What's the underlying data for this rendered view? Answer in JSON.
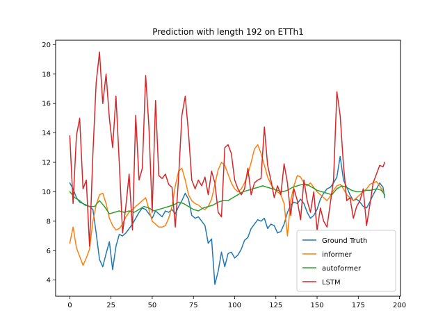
{
  "chart_data": {
    "type": "line",
    "title": "Prediction with length 192 on ETTh1",
    "xlabel": "",
    "ylabel": "",
    "xlim": [
      -8.6,
      200.6
    ],
    "ylim": [
      2.9,
      20.3
    ],
    "xticks": [
      0,
      25,
      50,
      75,
      100,
      125,
      150,
      175,
      200
    ],
    "yticks": [
      4,
      6,
      8,
      10,
      12,
      14,
      16,
      18,
      20
    ],
    "grid": false,
    "legend_position": "lower-right",
    "series": [
      {
        "name": "Ground Truth",
        "color": "#1f77b4",
        "x": [
          0,
          2,
          4,
          6,
          8,
          10,
          12,
          14,
          16,
          18,
          20,
          22,
          24,
          26,
          28,
          30,
          32,
          34,
          36,
          38,
          40,
          42,
          44,
          46,
          48,
          50,
          52,
          54,
          56,
          58,
          60,
          62,
          64,
          66,
          68,
          70,
          72,
          74,
          76,
          78,
          80,
          82,
          84,
          86,
          88,
          90,
          92,
          94,
          96,
          98,
          100,
          102,
          104,
          106,
          108,
          110,
          112,
          114,
          116,
          118,
          120,
          122,
          124,
          126,
          128,
          130,
          132,
          134,
          136,
          138,
          140,
          142,
          144,
          146,
          148,
          150,
          152,
          154,
          156,
          158,
          160,
          162,
          164,
          166,
          168,
          170,
          172,
          174,
          176,
          178,
          180,
          182,
          184,
          186,
          188,
          190,
          191
        ],
        "y": [
          10.6,
          10.2,
          9.6,
          9.3,
          9.2,
          9.1,
          9.0,
          8.8,
          7.2,
          5.4,
          4.9,
          5.8,
          6.6,
          4.7,
          6.3,
          7.1,
          7.0,
          7.2,
          7.5,
          7.8,
          8.2,
          8.6,
          8.9,
          8.8,
          8.5,
          8.2,
          8.7,
          8.5,
          8.3,
          8.7,
          8.6,
          8.8,
          8.5,
          9.0,
          9.4,
          9.9,
          9.5,
          8.4,
          8.2,
          8.3,
          8.0,
          7.7,
          6.5,
          6.8,
          3.7,
          4.6,
          5.9,
          4.9,
          5.8,
          5.9,
          5.5,
          5.7,
          6.1,
          6.7,
          6.9,
          7.5,
          7.8,
          8.1,
          8.0,
          8.2,
          7.5,
          7.8,
          7.7,
          7.2,
          7.3,
          7.8,
          8.6,
          9.1,
          9.3,
          9.2,
          9.5,
          9.2,
          8.6,
          8.2,
          8.4,
          8.8,
          9.5,
          9.9,
          10.2,
          10.3,
          10.6,
          11.0,
          12.4,
          10.8,
          10.3,
          9.8,
          9.4,
          9.5,
          9.3,
          9.0,
          8.9,
          9.3,
          9.8,
          10.2,
          10.6,
          10.3,
          9.6
        ]
      },
      {
        "name": "informer",
        "color": "#ff7f0e",
        "x": [
          0,
          2,
          4,
          6,
          8,
          10,
          12,
          14,
          16,
          18,
          20,
          22,
          24,
          26,
          28,
          30,
          32,
          34,
          36,
          38,
          40,
          42,
          44,
          46,
          48,
          50,
          52,
          54,
          56,
          58,
          60,
          62,
          64,
          66,
          68,
          70,
          72,
          74,
          76,
          78,
          80,
          82,
          84,
          86,
          88,
          90,
          92,
          94,
          96,
          98,
          100,
          102,
          104,
          106,
          108,
          110,
          112,
          114,
          116,
          118,
          120,
          122,
          124,
          126,
          128,
          130,
          132,
          134,
          136,
          138,
          140,
          142,
          144,
          146,
          148,
          150,
          152,
          154,
          156,
          158,
          160,
          162,
          164,
          166,
          168,
          170,
          172,
          174,
          176,
          178,
          180,
          182,
          184,
          186,
          188,
          190,
          191
        ],
        "y": [
          6.5,
          7.6,
          6.2,
          5.6,
          5.0,
          5.5,
          6.1,
          8.0,
          9.1,
          9.8,
          9.9,
          9.2,
          8.2,
          7.7,
          7.4,
          7.5,
          7.8,
          8.3,
          8.6,
          8.8,
          9.0,
          9.2,
          9.4,
          9.6,
          8.8,
          8.0,
          7.8,
          7.6,
          7.6,
          7.7,
          8.2,
          9.0,
          10.4,
          11.4,
          11.6,
          10.8,
          9.8,
          9.4,
          9.2,
          9.1,
          8.9,
          8.8,
          9.0,
          9.5,
          10.5,
          11.5,
          12.0,
          11.8,
          11.2,
          10.6,
          10.2,
          10.0,
          10.2,
          10.6,
          11.2,
          12.0,
          12.9,
          13.2,
          12.6,
          11.8,
          11.0,
          10.5,
          10.2,
          10.0,
          9.8,
          9.2,
          7.0,
          9.4,
          10.4,
          11.1,
          11.0,
          10.6,
          10.4,
          10.6,
          10.3,
          10.0,
          9.8,
          9.6,
          9.4,
          9.7,
          10.1,
          10.4,
          10.5,
          10.2,
          9.8,
          9.6,
          9.4,
          9.6,
          9.8,
          10.0,
          10.2,
          10.5,
          10.6,
          10.7,
          10.4,
          10.0,
          9.8
        ]
      },
      {
        "name": "autoformer",
        "color": "#2ca02c",
        "x": [
          0,
          3,
          6,
          9,
          12,
          15,
          18,
          21,
          24,
          27,
          30,
          33,
          36,
          39,
          42,
          45,
          48,
          51,
          54,
          57,
          60,
          63,
          66,
          69,
          72,
          75,
          78,
          81,
          84,
          87,
          90,
          93,
          96,
          99,
          102,
          105,
          108,
          111,
          114,
          117,
          120,
          123,
          126,
          129,
          132,
          135,
          138,
          141,
          144,
          147,
          150,
          153,
          156,
          159,
          162,
          165,
          168,
          171,
          174,
          177,
          180,
          183,
          186,
          189,
          191
        ],
        "y": [
          10.0,
          9.6,
          9.4,
          9.1,
          9.0,
          9.0,
          9.4,
          9.0,
          8.5,
          8.6,
          8.7,
          8.6,
          8.7,
          8.6,
          8.8,
          9.0,
          8.9,
          8.7,
          8.8,
          8.9,
          9.0,
          9.1,
          9.3,
          9.2,
          9.0,
          8.8,
          8.7,
          8.9,
          9.0,
          9.1,
          9.3,
          9.4,
          9.4,
          9.6,
          9.8,
          10.0,
          10.1,
          10.2,
          10.3,
          10.4,
          10.3,
          10.2,
          10.1,
          10.0,
          10.1,
          10.3,
          10.4,
          10.5,
          10.5,
          10.3,
          10.1,
          10.0,
          9.9,
          9.8,
          10.2,
          10.4,
          10.3,
          10.1,
          10.0,
          10.0,
          10.1,
          10.1,
          10.2,
          10.1,
          9.8
        ]
      },
      {
        "name": "LSTM",
        "color": "#d62728",
        "x": [
          0,
          2,
          4,
          6,
          8,
          10,
          12,
          14,
          16,
          18,
          20,
          22,
          24,
          26,
          28,
          30,
          32,
          34,
          36,
          38,
          40,
          42,
          44,
          46,
          48,
          50,
          52,
          54,
          56,
          58,
          60,
          62,
          64,
          66,
          68,
          70,
          72,
          74,
          76,
          78,
          80,
          82,
          84,
          86,
          88,
          90,
          92,
          94,
          96,
          98,
          100,
          102,
          104,
          106,
          108,
          110,
          112,
          114,
          116,
          118,
          120,
          122,
          124,
          126,
          128,
          130,
          132,
          134,
          136,
          138,
          140,
          142,
          144,
          146,
          148,
          150,
          152,
          154,
          156,
          158,
          160,
          162,
          164,
          166,
          168,
          170,
          172,
          174,
          176,
          178,
          180,
          182,
          184,
          186,
          188,
          190,
          191
        ],
        "y": [
          13.8,
          9.2,
          13.8,
          15.0,
          10.2,
          10.8,
          6.3,
          12.6,
          17.4,
          19.5,
          16.0,
          18.0,
          15.0,
          13.0,
          16.5,
          12.0,
          7.2,
          9.0,
          11.2,
          7.4,
          15.2,
          10.8,
          11.6,
          17.9,
          14.4,
          8.6,
          16.2,
          11.1,
          10.9,
          11.2,
          10.5,
          10.3,
          7.6,
          11.0,
          15.2,
          16.5,
          14.0,
          10.8,
          10.2,
          10.8,
          10.4,
          11.0,
          9.8,
          11.4,
          10.6,
          8.6,
          8.3,
          13.0,
          13.2,
          12.6,
          10.8,
          10.2,
          9.8,
          10.2,
          11.6,
          9.8,
          10.6,
          10.8,
          10.9,
          14.4,
          11.8,
          10.8,
          9.6,
          10.4,
          9.8,
          11.9,
          10.6,
          8.4,
          10.2,
          9.4,
          8.1,
          10.8,
          9.4,
          8.6,
          10.0,
          7.4,
          8.9,
          8.0,
          7.6,
          9.2,
          10.8,
          16.8,
          15.2,
          11.8,
          9.4,
          9.6,
          8.2,
          9.0,
          9.4,
          10.2,
          7.7,
          9.1,
          10.6,
          11.2,
          11.8,
          11.7,
          12.0
        ]
      }
    ]
  }
}
